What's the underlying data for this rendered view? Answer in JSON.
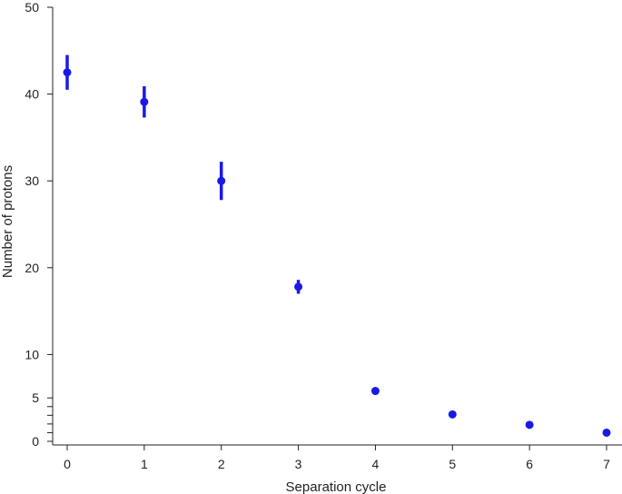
{
  "chart_data": {
    "type": "scatter",
    "title": "",
    "xlabel": "Separation cycle",
    "ylabel": "Number of protons",
    "xlim": [
      -0.2,
      7.15
    ],
    "ylim": [
      -0.5,
      50
    ],
    "xticks": [
      0,
      1,
      2,
      3,
      4,
      5,
      6,
      7
    ],
    "yticks_major": [
      0,
      5,
      10,
      20,
      30,
      40,
      50
    ],
    "yticks_minor": [
      1,
      2,
      3,
      4
    ],
    "grid": false,
    "legend": "none",
    "series": [
      {
        "color": "#1a1ae6",
        "points": [
          {
            "x": 0,
            "y": 42.5,
            "err": 2.0
          },
          {
            "x": 1,
            "y": 39.1,
            "err": 1.8
          },
          {
            "x": 2,
            "y": 30.0,
            "err": 2.2
          },
          {
            "x": 3,
            "y": 17.8,
            "err": 0.8
          },
          {
            "x": 4,
            "y": 5.8,
            "err": 0
          },
          {
            "x": 5,
            "y": 3.1,
            "err": 0
          },
          {
            "x": 6,
            "y": 1.9,
            "err": 0
          },
          {
            "x": 7,
            "y": 1.0,
            "err": 0
          }
        ]
      }
    ]
  }
}
